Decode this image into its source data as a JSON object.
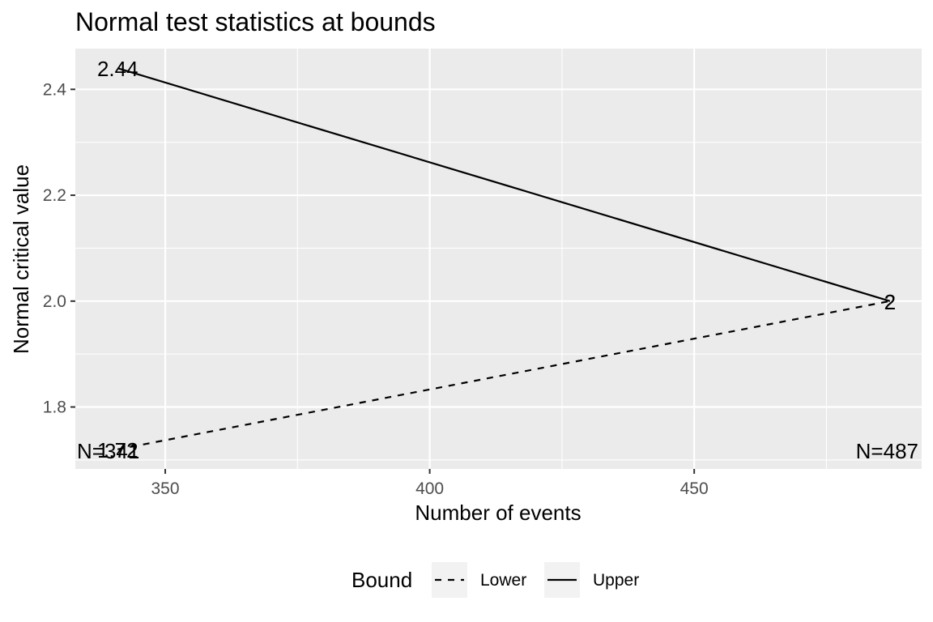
{
  "chart_data": {
    "type": "line",
    "title": "Normal test statistics at bounds",
    "xlabel": "Number of events",
    "ylabel": "Normal critical value",
    "xlim": [
      333,
      493
    ],
    "ylim": [
      1.683,
      2.477
    ],
    "x_ticks": [
      350,
      400,
      450
    ],
    "y_ticks": [
      1.8,
      2.0,
      2.2,
      2.4
    ],
    "grid": true,
    "legend_title": "Bound",
    "legend_position": "bottom",
    "series": [
      {
        "name": "Lower",
        "linetype": "dashed",
        "color": "#000000",
        "x": [
          341,
          487
        ],
        "y": [
          1.72,
          2.0
        ],
        "labels": [
          "1.72",
          "2"
        ]
      },
      {
        "name": "Upper",
        "linetype": "solid",
        "color": "#000000",
        "x": [
          341,
          487
        ],
        "y": [
          2.44,
          2.0
        ],
        "labels": [
          "2.44",
          "2"
        ]
      }
    ],
    "annotations": [
      {
        "text": "N=341",
        "anchor": "bottom-left"
      },
      {
        "text": "N=487",
        "anchor": "bottom-right"
      }
    ]
  }
}
